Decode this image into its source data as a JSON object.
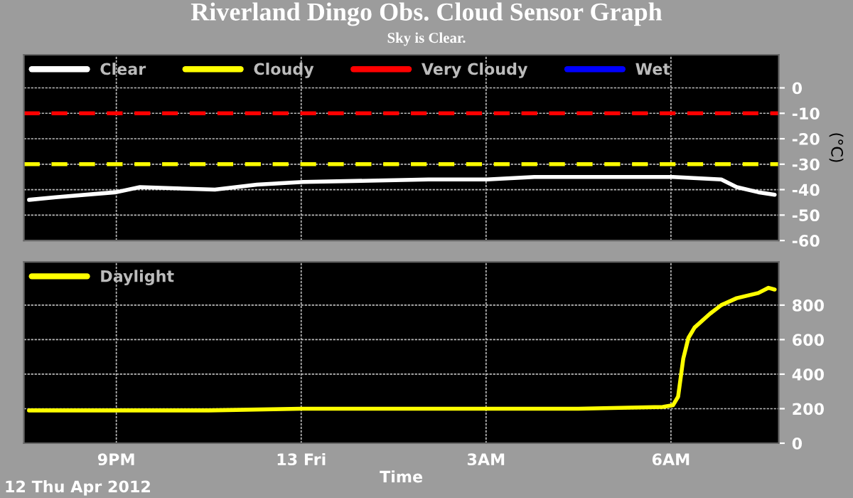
{
  "chart_data": [
    {
      "type": "line",
      "title": "Riverland Dingo Obs. Cloud Sensor Graph",
      "subtitle": "Sky is Clear.",
      "ylabel": "(°C)",
      "xlim": [
        "2012-04-12T19:30",
        "2012-04-13T07:45"
      ],
      "ylim": [
        -60,
        13
      ],
      "xticks": [
        {
          "value": "2012-04-12T21:00",
          "label": null
        },
        {
          "value": "2012-04-13T00:00",
          "label": null
        },
        {
          "value": "2012-04-13T03:00",
          "label": null
        },
        {
          "value": "2012-04-13T06:00",
          "label": null
        }
      ],
      "yticks": [
        0,
        -10,
        -20,
        -30,
        -40,
        -50,
        -60
      ],
      "tick_labels": "y",
      "grid": true,
      "legend": "top left",
      "series": [
        {
          "name": "Clear",
          "color": "#ffffff",
          "x": [
            "2012-04-12T19:35",
            "2012-04-12T20:01",
            "2012-04-12T21:00",
            "2012-04-12T21:23",
            "2012-04-12T22:36",
            "2012-04-12T23:17",
            "2012-04-13T00:02",
            "2012-04-13T02:04",
            "2012-04-13T03:01",
            "2012-04-13T03:47",
            "2012-04-13T04:29",
            "2012-04-13T06:02",
            "2012-04-13T06:49",
            "2012-04-13T07:04",
            "2012-04-13T07:25",
            "2012-04-13T07:41"
          ],
          "values": [
            -44,
            -43,
            -41,
            -39,
            -40,
            -38,
            -37,
            -36,
            -36,
            -35,
            -35,
            -35,
            -36,
            -39,
            -41,
            -42
          ]
        },
        {
          "name": "Cloudy",
          "color": "#ffff00",
          "line_style": "dashed",
          "x": [
            "2012-04-12T19:30",
            "2012-04-13T07:45"
          ],
          "values": [
            -30,
            -30
          ]
        },
        {
          "name": "Very Cloudy",
          "color": "#ff0000",
          "line_style": "dashed",
          "x": [
            "2012-04-12T19:30",
            "2012-04-13T07:45"
          ],
          "values": [
            -10,
            -10
          ]
        },
        {
          "name": "Wet",
          "color": "#0000ff"
        }
      ]
    },
    {
      "type": "line",
      "xlabel": "Time",
      "xlim": [
        "2012-04-12T19:30",
        "2012-04-13T07:45"
      ],
      "ylim": [
        0,
        1050
      ],
      "xticks": [
        {
          "value": "2012-04-12T21:00",
          "label": "9PM"
        },
        {
          "value": "2012-04-13T00:00",
          "label": "13 Fri"
        },
        {
          "value": "2012-04-13T03:00",
          "label": "3AM"
        },
        {
          "value": "2012-04-13T06:00",
          "label": "6AM"
        }
      ],
      "yticks": [
        0,
        200,
        400,
        600,
        800
      ],
      "grid": true,
      "legend": "top left",
      "annotations": [
        "12 Thu Apr 2012"
      ],
      "series": [
        {
          "name": "Daylight",
          "color": "#ffff00",
          "x": [
            "2012-04-12T19:35",
            "2012-04-12T20:01",
            "2012-04-12T21:00",
            "2012-04-12T22:30",
            "2012-04-13T00:00",
            "2012-04-13T01:30",
            "2012-04-13T03:00",
            "2012-04-13T04:30",
            "2012-04-13T05:52",
            "2012-04-13T06:02",
            "2012-04-13T06:07",
            "2012-04-13T06:12",
            "2012-04-13T06:17",
            "2012-04-13T06:23",
            "2012-04-13T06:38",
            "2012-04-13T06:49",
            "2012-04-13T07:04",
            "2012-04-13T07:25",
            "2012-04-13T07:35",
            "2012-04-13T07:41"
          ],
          "values": [
            190,
            190,
            190,
            190,
            200,
            200,
            200,
            200,
            210,
            220,
            270,
            490,
            610,
            670,
            750,
            800,
            840,
            870,
            900,
            890
          ]
        }
      ]
    }
  ]
}
